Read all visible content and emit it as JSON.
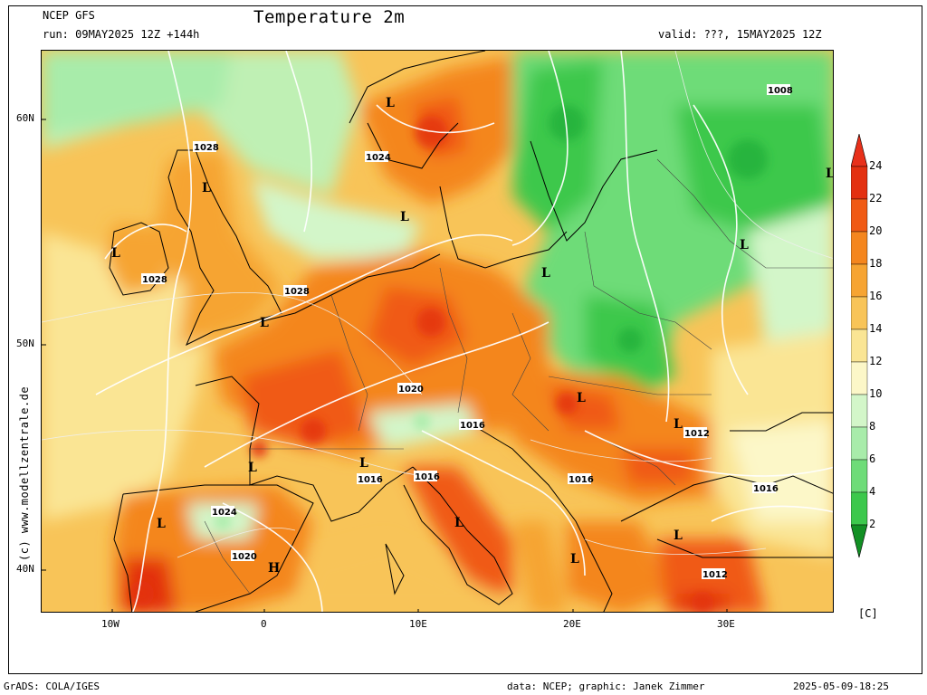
{
  "header": {
    "model": "NCEP GFS",
    "run": "run: 09MAY2025 12Z +144h",
    "title": "Temperature 2m",
    "valid": "valid: ???, 15MAY2025 12Z"
  },
  "axes": {
    "lat_labels": [
      "60N",
      "50N",
      "40N"
    ],
    "lon_labels": [
      "10W",
      "0",
      "10E",
      "20E",
      "30E"
    ]
  },
  "side_label": "(c) www.modellzentrale.de",
  "legend": {
    "unit": "[C]",
    "levels": [
      "24",
      "22",
      "20",
      "18",
      "16",
      "14",
      "12",
      "10",
      "8",
      "6",
      "4",
      "2"
    ],
    "colors": [
      "#e33010",
      "#f05a14",
      "#f4861e",
      "#f6a432",
      "#f8c458",
      "#fae594",
      "#fcf7c8",
      "#d3f6c9",
      "#a8ecaa",
      "#6edc78",
      "#3cc84c",
      "#22b03a",
      "#169a2c"
    ],
    "top_color": "#e8301a",
    "bottom_color": "#129024"
  },
  "pressure_labels": [
    {
      "text": "1028"
    },
    {
      "text": "1028"
    },
    {
      "text": "1028"
    },
    {
      "text": "1024"
    },
    {
      "text": "1020"
    },
    {
      "text": "1016"
    },
    {
      "text": "1016"
    },
    {
      "text": "1016"
    },
    {
      "text": "1016"
    },
    {
      "text": "1016"
    },
    {
      "text": "1024"
    },
    {
      "text": "1020"
    },
    {
      "text": "1012"
    },
    {
      "text": "1012"
    },
    {
      "text": "1008"
    }
  ],
  "centers": [
    "L",
    "L",
    "L",
    "L",
    "L",
    "L",
    "L",
    "L",
    "L",
    "L",
    "L",
    "L",
    "L",
    "L",
    "L",
    "L",
    "H"
  ],
  "footer": {
    "left": "GrADS: COLA/IGES",
    "middle": "data: NCEP; graphic: Janek Zimmer",
    "right": "2025-05-09-18:25"
  }
}
